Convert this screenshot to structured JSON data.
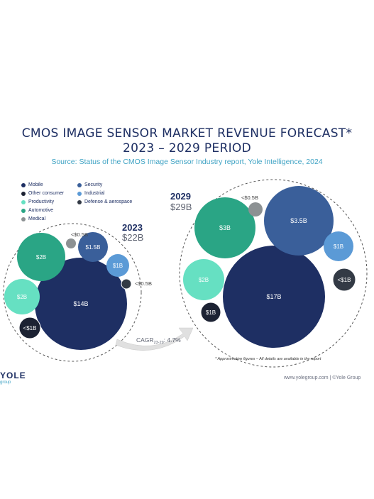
{
  "title_line1": "CMOS IMAGE SENSOR MARKET REVENUE FORECAST*",
  "title_line2": "2023 – 2029 PERIOD",
  "subtitle": "Source: Status of the CMOS Image Sensor Industry report, Yole Intelligence, 2024",
  "footnote": "* Approximative figures – All details are available in the report",
  "logo": "YOLE",
  "logo_sub": "group",
  "footer_url": "www.yolegroup.com | ©Yole Group",
  "colors": {
    "Mobile": "#1e2f63",
    "Security": "#3a5f9a",
    "Other consumer": "#1c2233",
    "Industrial": "#5b9ad6",
    "Productivity": "#66e0c2",
    "Defense & aerospace": "#333a45",
    "Automotive": "#2aa585",
    "Medical": "#8c9193"
  },
  "legend": [
    {
      "name": "Mobile",
      "color": "#1e2f63"
    },
    {
      "name": "Security",
      "color": "#3a5f9a"
    },
    {
      "name": "Other consumer",
      "color": "#1c2233"
    },
    {
      "name": "Industrial",
      "color": "#5b9ad6"
    },
    {
      "name": "Productivity",
      "color": "#66e0c2"
    },
    {
      "name": "Defense & aerospace",
      "color": "#333a45"
    },
    {
      "name": "Automotive",
      "color": "#2aa585"
    },
    {
      "name": "Medical",
      "color": "#8c9193"
    }
  ],
  "cagr_label": "CAGR",
  "cagr_sub": "23-29",
  "cagr_value": ": 4.7%",
  "chart_data": {
    "type": "bubble",
    "groups": [
      {
        "year": "2023",
        "total": "$22B",
        "bubbles": [
          {
            "segment": "Mobile",
            "label": "$14B",
            "value": 14
          },
          {
            "segment": "Automotive",
            "label": "$2B",
            "value": 2
          },
          {
            "segment": "Productivity",
            "label": "$2B",
            "value": 2
          },
          {
            "segment": "Security",
            "label": "$1.5B",
            "value": 1.5
          },
          {
            "segment": "Industrial",
            "label": "$1B",
            "value": 1
          },
          {
            "segment": "Other consumer",
            "label": "<$1B",
            "value": 0.9
          },
          {
            "segment": "Medical",
            "label": "<$0.5B",
            "value": 0.4
          },
          {
            "segment": "Defense & aerospace",
            "label": "<$0.5B",
            "value": 0.4
          }
        ]
      },
      {
        "year": "2029",
        "total": "$29B",
        "bubbles": [
          {
            "segment": "Mobile",
            "label": "$17B",
            "value": 17
          },
          {
            "segment": "Security",
            "label": "$3.5B",
            "value": 3.5
          },
          {
            "segment": "Automotive",
            "label": "$3B",
            "value": 3
          },
          {
            "segment": "Productivity",
            "label": "$2B",
            "value": 2
          },
          {
            "segment": "Industrial",
            "label": "$1B",
            "value": 1
          },
          {
            "segment": "Other consumer",
            "label": "$1B",
            "value": 1
          },
          {
            "segment": "Defense & aerospace",
            "label": "<$1B",
            "value": 0.9
          },
          {
            "segment": "Medical",
            "label": "<$0.5B",
            "value": 0.4
          }
        ]
      }
    ],
    "cagr": "4.7%"
  }
}
